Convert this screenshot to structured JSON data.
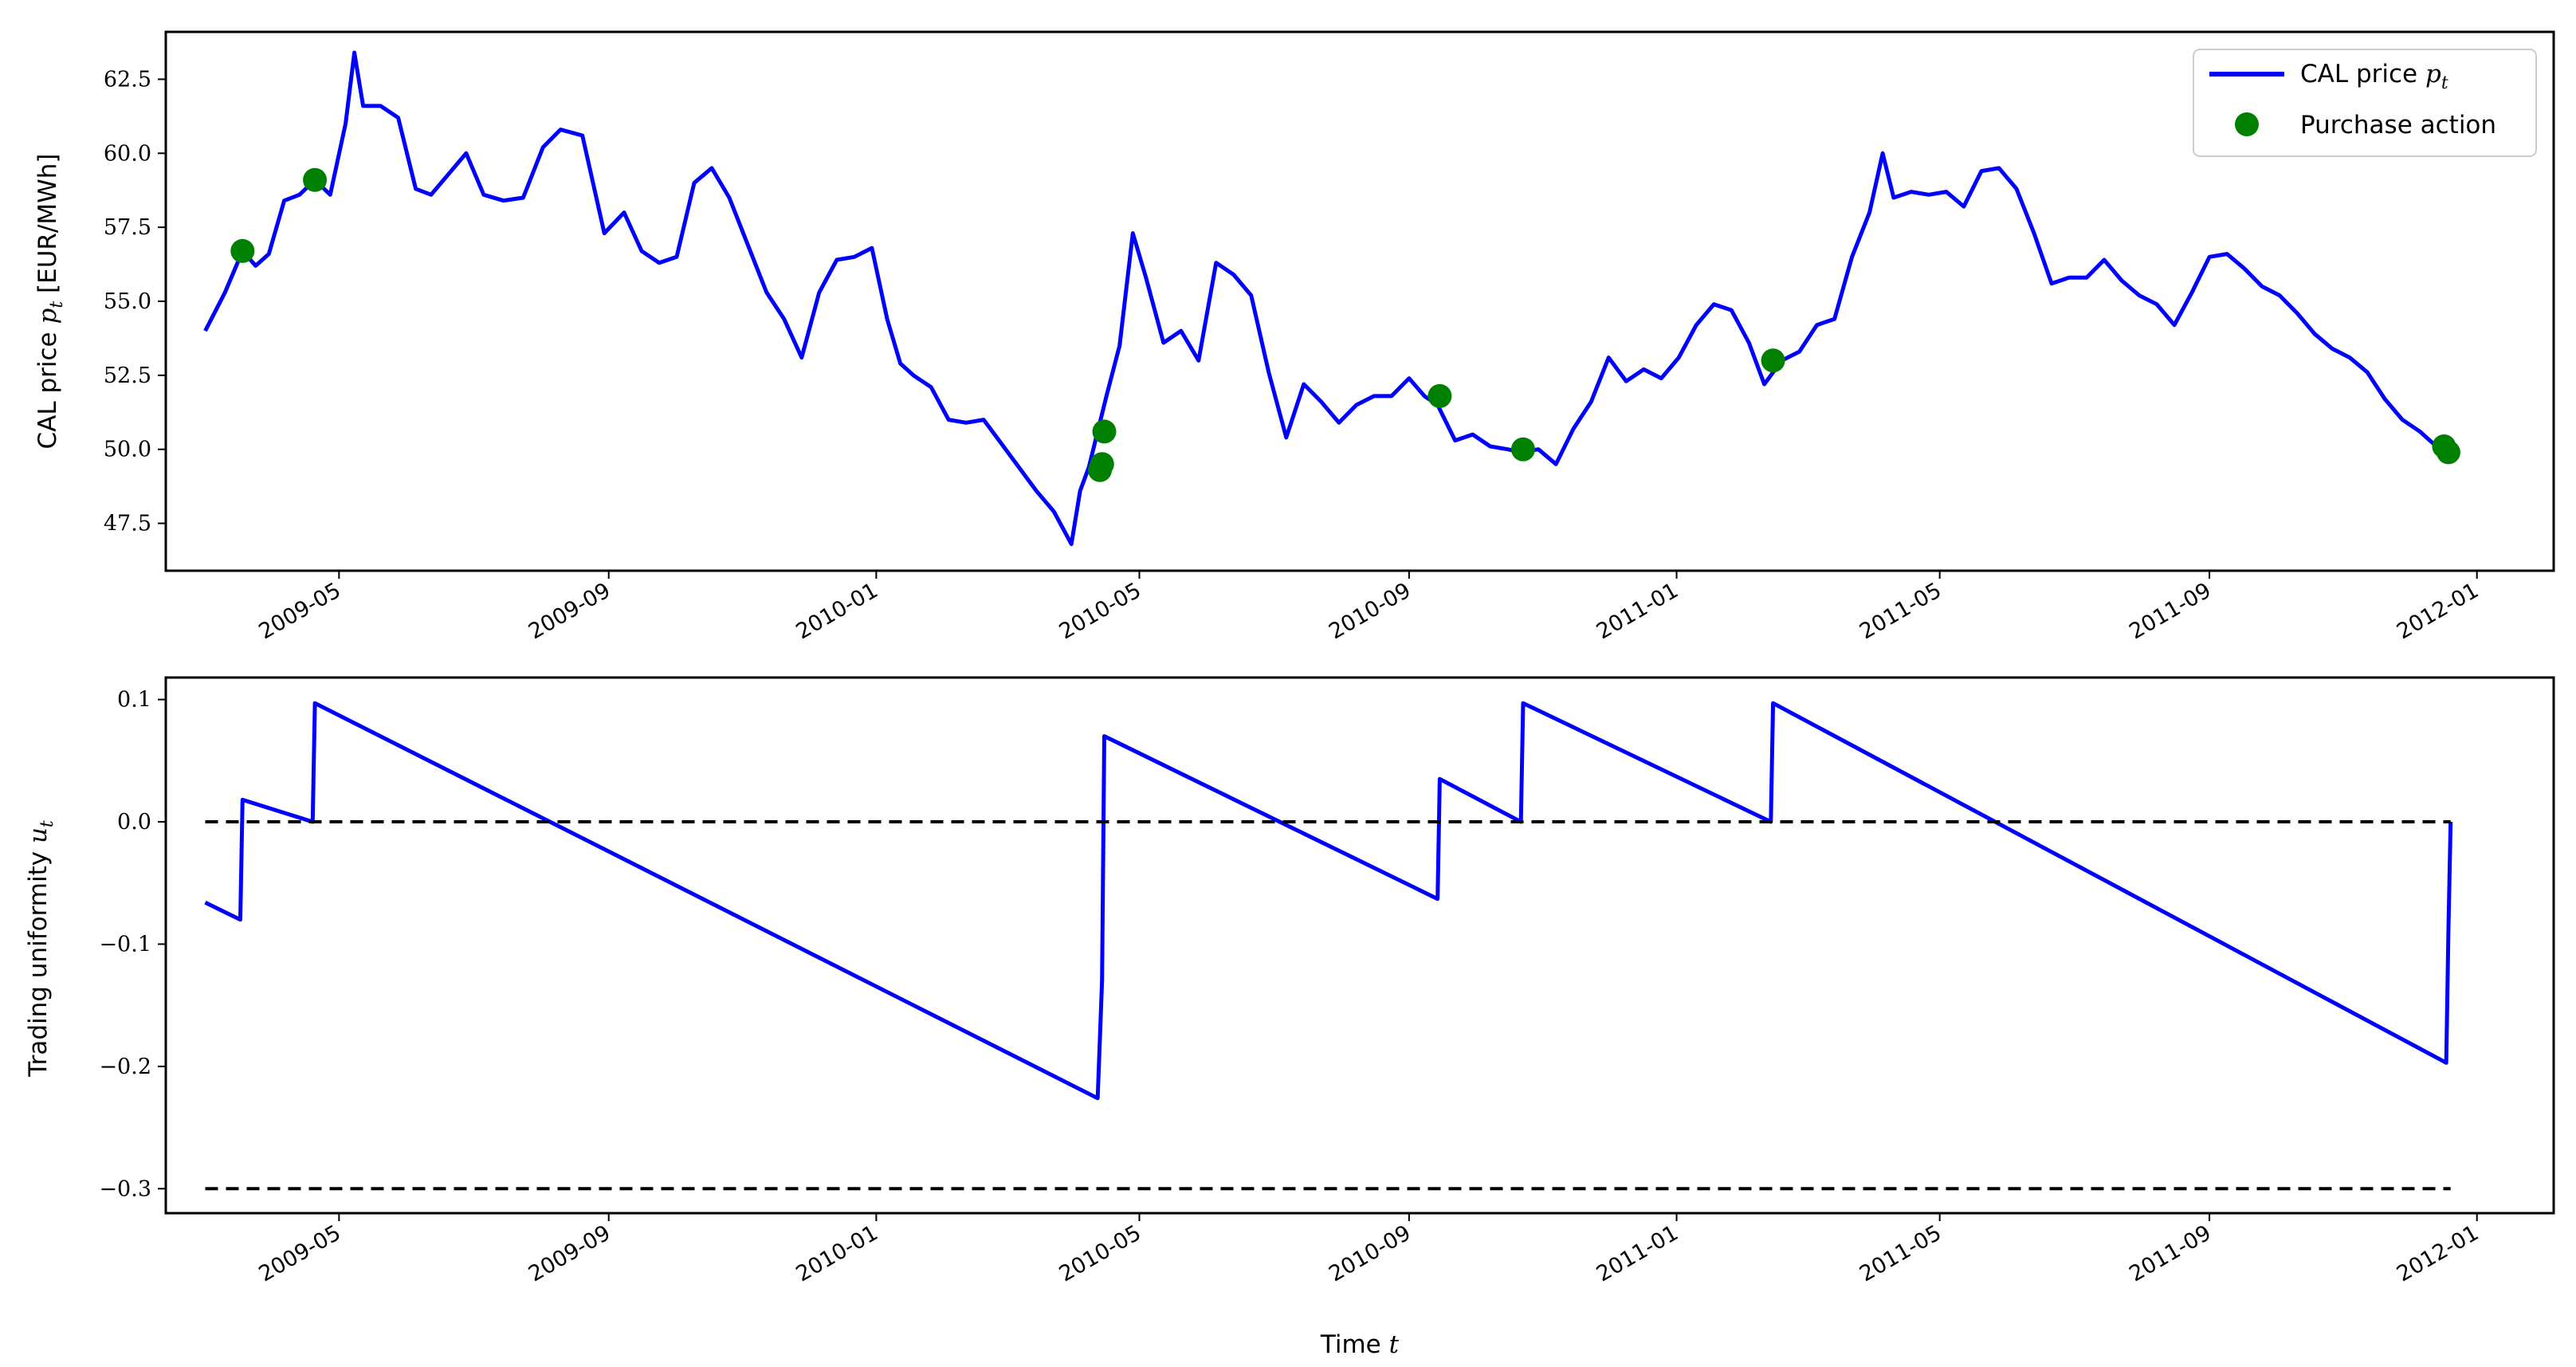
{
  "chart_data": [
    {
      "type": "line",
      "ylabel": "CAL price p_t [EUR/MWh]",
      "ylabel_text": "CAL price ",
      "ylabel_symbol": "p",
      "ylabel_sub": "t",
      "ylabel_unit": " [EUR/MWh]",
      "ylim": [
        45.9,
        64.1
      ],
      "yticks": [
        "47.5",
        "50.0",
        "52.5",
        "55.0",
        "57.5",
        "60.0",
        "62.5"
      ],
      "ytick_values": [
        47.5,
        50.0,
        52.5,
        55.0,
        57.5,
        60.0,
        62.5
      ],
      "xlim": [
        "2009-02-11",
        "2012-02-05"
      ],
      "xticks": [
        "2009-05",
        "2009-09",
        "2010-01",
        "2010-05",
        "2010-09",
        "2011-01",
        "2011-05",
        "2011-09",
        "2012-01"
      ],
      "xtick_dates": [
        "2009-05-01",
        "2009-09-01",
        "2010-01-01",
        "2010-05-01",
        "2010-09-01",
        "2011-01-01",
        "2011-05-01",
        "2011-09-01",
        "2012-01-01"
      ],
      "legend": {
        "placement": "top-right",
        "entries": [
          {
            "label": "CAL price ",
            "symbol": "p",
            "sub": "t",
            "kind": "line"
          },
          {
            "label": "Purchase action",
            "kind": "marker"
          }
        ]
      },
      "series": [
        {
          "name": "CAL price p_t",
          "color": "#0000ff",
          "x": [
            "2009-03-01",
            "2009-03-10",
            "2009-03-18",
            "2009-03-24",
            "2009-03-30",
            "2009-04-06",
            "2009-04-13",
            "2009-04-20",
            "2009-04-27",
            "2009-05-04",
            "2009-05-08",
            "2009-05-12",
            "2009-05-20",
            "2009-05-28",
            "2009-06-05",
            "2009-06-12",
            "2009-06-20",
            "2009-06-28",
            "2009-07-06",
            "2009-07-15",
            "2009-07-24",
            "2009-08-02",
            "2009-08-10",
            "2009-08-20",
            "2009-08-30",
            "2009-09-08",
            "2009-09-16",
            "2009-09-24",
            "2009-10-02",
            "2009-10-10",
            "2009-10-18",
            "2009-10-26",
            "2009-11-04",
            "2009-11-12",
            "2009-11-20",
            "2009-11-28",
            "2009-12-06",
            "2009-12-14",
            "2009-12-22",
            "2009-12-30",
            "2010-01-06",
            "2010-01-12",
            "2010-01-18",
            "2010-01-26",
            "2010-02-03",
            "2010-02-11",
            "2010-02-19",
            "2010-02-27",
            "2010-03-07",
            "2010-03-15",
            "2010-03-23",
            "2010-03-31",
            "2010-04-04",
            "2010-04-08",
            "2010-04-12",
            "2010-04-16",
            "2010-04-22",
            "2010-04-28",
            "2010-05-04",
            "2010-05-12",
            "2010-05-20",
            "2010-05-28",
            "2010-06-05",
            "2010-06-13",
            "2010-06-21",
            "2010-06-29",
            "2010-07-07",
            "2010-07-15",
            "2010-07-23",
            "2010-07-31",
            "2010-08-08",
            "2010-08-16",
            "2010-08-24",
            "2010-09-01",
            "2010-09-08",
            "2010-09-14",
            "2010-09-22",
            "2010-09-30",
            "2010-10-08",
            "2010-10-16",
            "2010-10-22",
            "2010-10-30",
            "2010-11-07",
            "2010-11-15",
            "2010-11-23",
            "2010-12-01",
            "2010-12-09",
            "2010-12-17",
            "2010-12-25",
            "2011-01-02",
            "2011-01-10",
            "2011-01-18",
            "2011-01-26",
            "2011-02-03",
            "2011-02-10",
            "2011-02-18",
            "2011-02-26",
            "2011-03-06",
            "2011-03-14",
            "2011-03-22",
            "2011-03-30",
            "2011-04-05",
            "2011-04-10",
            "2011-04-18",
            "2011-04-26",
            "2011-05-04",
            "2011-05-12",
            "2011-05-20",
            "2011-05-28",
            "2011-06-05",
            "2011-06-13",
            "2011-06-21",
            "2011-06-29",
            "2011-07-07",
            "2011-07-15",
            "2011-07-23",
            "2011-07-31",
            "2011-08-08",
            "2011-08-16",
            "2011-08-24",
            "2011-09-01",
            "2011-09-09",
            "2011-09-17",
            "2011-09-25",
            "2011-10-03",
            "2011-10-11",
            "2011-10-19",
            "2011-10-27",
            "2011-11-04",
            "2011-11-12",
            "2011-11-20",
            "2011-11-28",
            "2011-12-06",
            "2011-12-12",
            "2011-12-16",
            "2011-12-20"
          ],
          "values": [
            54.0,
            55.3,
            56.7,
            56.2,
            56.6,
            58.4,
            58.6,
            59.1,
            58.6,
            61.0,
            63.4,
            61.6,
            61.6,
            61.2,
            58.8,
            58.6,
            59.3,
            60.0,
            58.6,
            58.4,
            58.5,
            60.2,
            60.8,
            60.6,
            57.3,
            58.0,
            56.7,
            56.3,
            56.5,
            59.0,
            59.5,
            58.5,
            56.8,
            55.3,
            54.4,
            53.1,
            55.3,
            56.4,
            56.5,
            56.8,
            54.4,
            52.9,
            52.5,
            52.1,
            51.0,
            50.9,
            51.0,
            50.2,
            49.4,
            48.6,
            47.9,
            46.8,
            48.6,
            49.4,
            50.6,
            51.8,
            53.5,
            57.3,
            55.8,
            53.6,
            54.0,
            53.0,
            56.3,
            55.9,
            55.2,
            52.6,
            50.4,
            52.2,
            51.6,
            50.9,
            51.5,
            51.8,
            51.8,
            52.4,
            51.8,
            51.5,
            50.3,
            50.5,
            50.1,
            50.0,
            49.9,
            50.0,
            49.5,
            50.7,
            51.6,
            53.1,
            52.3,
            52.7,
            52.4,
            53.1,
            54.2,
            54.9,
            54.7,
            53.6,
            52.2,
            53.0,
            53.3,
            54.2,
            54.4,
            56.5,
            58.0,
            60.0,
            58.5,
            58.7,
            58.6,
            58.7,
            58.2,
            59.4,
            59.5,
            58.8,
            57.3,
            55.6,
            55.8,
            55.8,
            56.4,
            55.7,
            55.2,
            54.9,
            54.2,
            55.3,
            56.5,
            56.6,
            56.1,
            55.5,
            55.2,
            54.6,
            53.9,
            53.4,
            53.1,
            52.6,
            51.7,
            51.0,
            50.6,
            50.2,
            50.1,
            49.9
          ]
        }
      ],
      "markers": {
        "name": "Purchase action",
        "color": "#008000",
        "x": [
          "2009-03-18",
          "2009-04-20",
          "2010-04-13",
          "2010-04-14",
          "2010-04-15",
          "2010-09-15",
          "2010-10-23",
          "2011-02-14",
          "2011-12-17",
          "2011-12-19"
        ],
        "values": [
          56.7,
          59.1,
          49.3,
          49.5,
          50.6,
          51.8,
          50.0,
          53.0,
          50.1,
          49.9
        ]
      }
    },
    {
      "type": "line",
      "ylabel": "Trading uniformity u_t",
      "ylabel_text": "Trading uniformity ",
      "ylabel_symbol": "u",
      "ylabel_sub": "t",
      "ylim": [
        -0.32,
        0.118
      ],
      "yticks": [
        "−0.3",
        "−0.2",
        "−0.1",
        "0.0",
        "0.1"
      ],
      "ytick_values": [
        -0.3,
        -0.2,
        -0.1,
        0.0,
        0.1
      ],
      "xlim": [
        "2009-02-11",
        "2012-02-05"
      ],
      "xticks": [
        "2009-05",
        "2009-09",
        "2010-01",
        "2010-05",
        "2010-09",
        "2011-01",
        "2011-05",
        "2011-09",
        "2012-01"
      ],
      "xtick_dates": [
        "2009-05-01",
        "2009-09-01",
        "2010-01-01",
        "2010-05-01",
        "2010-09-01",
        "2011-01-01",
        "2011-05-01",
        "2011-09-01",
        "2012-01-01"
      ],
      "xlabel_text": "Time ",
      "xlabel_symbol": "t",
      "series": [
        {
          "name": "Trading uniformity u_t",
          "color": "#0000ff",
          "x": [
            "2009-03-01",
            "2009-03-17",
            "2009-03-18",
            "2009-04-19",
            "2009-04-20",
            "2010-04-12",
            "2010-04-14",
            "2010-04-15",
            "2010-09-14",
            "2010-09-15",
            "2010-10-22",
            "2010-10-23",
            "2011-02-13",
            "2011-02-14",
            "2011-12-18",
            "2011-12-19",
            "2011-12-20"
          ],
          "values": [
            -0.066,
            -0.08,
            0.018,
            0.0,
            0.097,
            -0.226,
            -0.13,
            0.07,
            -0.063,
            0.035,
            0.0,
            0.097,
            0.0,
            0.097,
            -0.197,
            -0.09,
            0.0
          ]
        },
        {
          "name": "upper bound",
          "color": "#000000",
          "x": [
            "2009-03-01",
            "2011-12-20"
          ],
          "values": [
            0.0,
            0.0
          ]
        },
        {
          "name": "lower bound",
          "color": "#000000",
          "x": [
            "2009-03-01",
            "2011-12-20"
          ],
          "values": [
            -0.3,
            -0.3
          ]
        }
      ]
    }
  ]
}
